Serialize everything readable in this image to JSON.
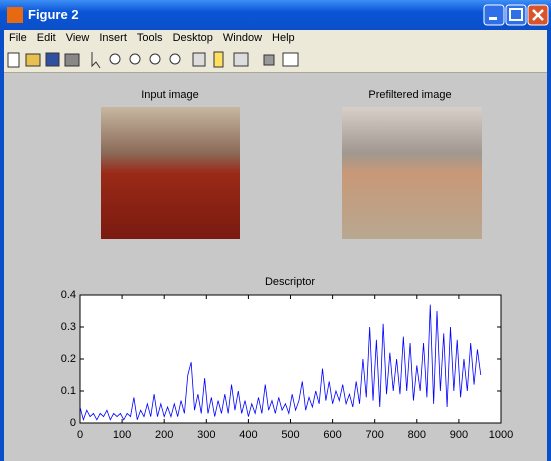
{
  "window": {
    "title": "Figure 2",
    "menu": [
      "File",
      "Edit",
      "View",
      "Insert",
      "Tools",
      "Desktop",
      "Window",
      "Help"
    ]
  },
  "images": [
    {
      "title": "Input image"
    },
    {
      "title": "Prefiltered image"
    }
  ],
  "chart_data": {
    "type": "line",
    "title": "Descriptor",
    "x": [
      0,
      8,
      16,
      24,
      32,
      40,
      48,
      56,
      64,
      72,
      80,
      88,
      96,
      104,
      112,
      120,
      128,
      136,
      144,
      152,
      160,
      168,
      176,
      184,
      192,
      200,
      208,
      216,
      224,
      232,
      240,
      248,
      256,
      264,
      272,
      280,
      288,
      296,
      304,
      312,
      320,
      328,
      336,
      344,
      352,
      360,
      368,
      376,
      384,
      392,
      400,
      408,
      416,
      424,
      432,
      440,
      448,
      456,
      464,
      472,
      480,
      488,
      496,
      504,
      512,
      520,
      528,
      536,
      544,
      552,
      560,
      568,
      576,
      584,
      592,
      600,
      608,
      616,
      624,
      632,
      640,
      648,
      656,
      664,
      672,
      680,
      688,
      696,
      704,
      712,
      720,
      728,
      736,
      744,
      752,
      760,
      768,
      776,
      784,
      792,
      800,
      808,
      816,
      824,
      832,
      840,
      848,
      856,
      864,
      872,
      880,
      888,
      896,
      904,
      912,
      920,
      928,
      936,
      944,
      952
    ],
    "series": [
      {
        "color": "#0000ff",
        "values": [
          0.05,
          0.01,
          0.04,
          0.02,
          0.03,
          0.01,
          0.03,
          0.02,
          0.04,
          0.01,
          0.03,
          0.02,
          0.03,
          0.01,
          0.03,
          0.02,
          0.08,
          0.01,
          0.04,
          0.02,
          0.06,
          0.02,
          0.09,
          0.02,
          0.06,
          0.02,
          0.05,
          0.02,
          0.06,
          0.02,
          0.07,
          0.03,
          0.15,
          0.19,
          0.04,
          0.09,
          0.03,
          0.14,
          0.03,
          0.08,
          0.02,
          0.07,
          0.03,
          0.09,
          0.03,
          0.12,
          0.04,
          0.1,
          0.03,
          0.07,
          0.02,
          0.06,
          0.03,
          0.08,
          0.03,
          0.12,
          0.04,
          0.07,
          0.03,
          0.08,
          0.04,
          0.06,
          0.03,
          0.09,
          0.04,
          0.07,
          0.13,
          0.04,
          0.08,
          0.05,
          0.1,
          0.06,
          0.17,
          0.07,
          0.13,
          0.06,
          0.1,
          0.07,
          0.12,
          0.06,
          0.09,
          0.05,
          0.13,
          0.06,
          0.2,
          0.08,
          0.3,
          0.07,
          0.26,
          0.05,
          0.31,
          0.09,
          0.22,
          0.1,
          0.2,
          0.09,
          0.27,
          0.1,
          0.25,
          0.07,
          0.18,
          0.1,
          0.25,
          0.08,
          0.37,
          0.06,
          0.35,
          0.1,
          0.28,
          0.05,
          0.3,
          0.1,
          0.26,
          0.08,
          0.2,
          0.1,
          0.25,
          0.12,
          0.23,
          0.15
        ]
      }
    ],
    "xlim": [
      0,
      1000
    ],
    "xticks": [
      0,
      100,
      200,
      300,
      400,
      500,
      600,
      700,
      800,
      900,
      1000
    ],
    "ylim": [
      0,
      0.4
    ],
    "yticks": [
      0,
      0.1,
      0.2,
      0.3,
      0.4
    ]
  }
}
